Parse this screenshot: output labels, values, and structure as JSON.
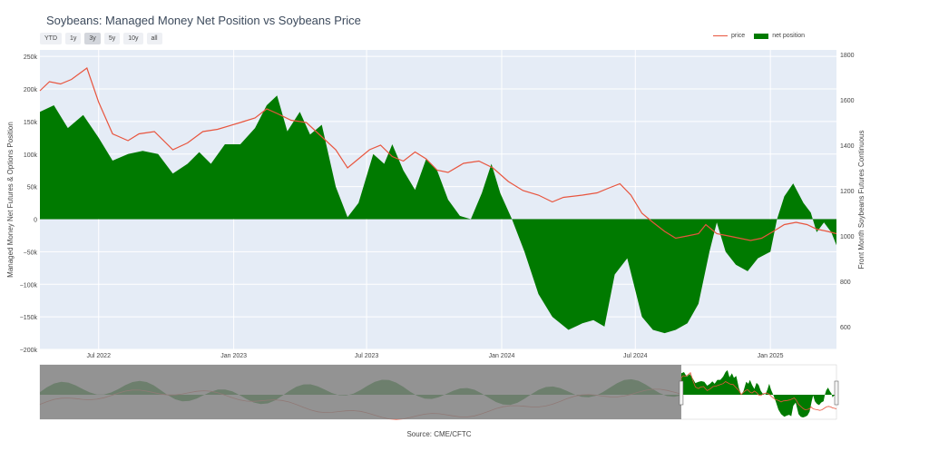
{
  "title": "Soybeans: Managed Money Net Position vs Soybeans Price",
  "range_buttons": [
    {
      "label": "YTD",
      "active": false
    },
    {
      "label": "1y",
      "active": false
    },
    {
      "label": "3y",
      "active": true
    },
    {
      "label": "5y",
      "active": false
    },
    {
      "label": "10y",
      "active": false
    },
    {
      "label": "all",
      "active": false
    }
  ],
  "legend": {
    "price": "price",
    "net": "net position"
  },
  "source": "Source: CME/CFTC",
  "colors": {
    "price": "#e8553e",
    "net": "#007a00",
    "plot_bg": "#e5ecf6",
    "grid": "#ffffff",
    "nav_mask": "#808080"
  },
  "chart_data": {
    "type": "area",
    "title": "Soybeans: Managed Money Net Position vs Soybeans Price",
    "x_range": [
      "2022-04-12",
      "2025-04-01"
    ],
    "x_ticks": [
      {
        "date": "2022-07-01",
        "label": "Jul 2022"
      },
      {
        "date": "2023-01-01",
        "label": "Jan 2023"
      },
      {
        "date": "2023-07-01",
        "label": "Jul 2023"
      },
      {
        "date": "2024-01-01",
        "label": "Jan 2024"
      },
      {
        "date": "2024-07-01",
        "label": "Jul 2024"
      },
      {
        "date": "2025-01-01",
        "label": "Jan 2025"
      }
    ],
    "y_left": {
      "label": "Managed Money Net Futures & Options Position",
      "range": [
        -200000,
        260000
      ],
      "ticks": [
        250000,
        200000,
        150000,
        100000,
        50000,
        0,
        -50000,
        -100000,
        -150000,
        -200000
      ],
      "tick_labels": [
        "250k",
        "200k",
        "150k",
        "100k",
        "50k",
        "0",
        "−50k",
        "−100k",
        "−150k",
        "−200k"
      ]
    },
    "y_right": {
      "label": "Front Month Soybeans Futures Continuous",
      "range": [
        500,
        1820
      ],
      "ticks": [
        1800,
        1600,
        1400,
        1200,
        1000,
        800,
        600
      ],
      "tick_labels": [
        "1800",
        "1600",
        "1400",
        "1200",
        "1000",
        "800",
        "600"
      ]
    },
    "grid": true,
    "legend_position": "top-right",
    "series": [
      {
        "name": "net position",
        "axis": "left",
        "points": [
          [
            "2022-04-12",
            165000
          ],
          [
            "2022-05-01",
            175000
          ],
          [
            "2022-05-20",
            140000
          ],
          [
            "2022-06-10",
            160000
          ],
          [
            "2022-07-01",
            125000
          ],
          [
            "2022-07-20",
            90000
          ],
          [
            "2022-08-10",
            100000
          ],
          [
            "2022-08-30",
            105000
          ],
          [
            "2022-09-20",
            100000
          ],
          [
            "2022-10-10",
            70000
          ],
          [
            "2022-10-30",
            85000
          ],
          [
            "2022-11-15",
            103000
          ],
          [
            "2022-12-01",
            85000
          ],
          [
            "2022-12-20",
            115000
          ],
          [
            "2023-01-10",
            115000
          ],
          [
            "2023-01-30",
            140000
          ],
          [
            "2023-02-15",
            175000
          ],
          [
            "2023-03-01",
            190000
          ],
          [
            "2023-03-15",
            135000
          ],
          [
            "2023-04-01",
            165000
          ],
          [
            "2023-04-15",
            130000
          ],
          [
            "2023-05-01",
            145000
          ],
          [
            "2023-05-20",
            50000
          ],
          [
            "2023-06-05",
            3000
          ],
          [
            "2023-06-20",
            25000
          ],
          [
            "2023-07-10",
            100000
          ],
          [
            "2023-07-25",
            85000
          ],
          [
            "2023-08-05",
            115000
          ],
          [
            "2023-08-20",
            75000
          ],
          [
            "2023-09-05",
            45000
          ],
          [
            "2023-09-20",
            92000
          ],
          [
            "2023-10-05",
            75000
          ],
          [
            "2023-10-20",
            30000
          ],
          [
            "2023-11-05",
            5000
          ],
          [
            "2023-11-20",
            0
          ],
          [
            "2023-12-05",
            40000
          ],
          [
            "2023-12-18",
            85000
          ],
          [
            "2023-12-30",
            40000
          ],
          [
            "2024-01-15",
            0
          ],
          [
            "2024-02-01",
            -50000
          ],
          [
            "2024-02-20",
            -115000
          ],
          [
            "2024-03-10",
            -150000
          ],
          [
            "2024-04-01",
            -170000
          ],
          [
            "2024-04-20",
            -160000
          ],
          [
            "2024-05-05",
            -155000
          ],
          [
            "2024-05-20",
            -165000
          ],
          [
            "2024-06-03",
            -85000
          ],
          [
            "2024-06-20",
            -60000
          ],
          [
            "2024-07-10",
            -150000
          ],
          [
            "2024-07-25",
            -170000
          ],
          [
            "2024-08-10",
            -175000
          ],
          [
            "2024-08-25",
            -170000
          ],
          [
            "2024-09-10",
            -160000
          ],
          [
            "2024-09-25",
            -130000
          ],
          [
            "2024-10-10",
            -50000
          ],
          [
            "2024-10-20",
            -5000
          ],
          [
            "2024-11-01",
            -50000
          ],
          [
            "2024-11-15",
            -70000
          ],
          [
            "2024-12-01",
            -80000
          ],
          [
            "2024-12-15",
            -60000
          ],
          [
            "2025-01-01",
            -50000
          ],
          [
            "2025-01-10",
            0
          ],
          [
            "2025-01-20",
            35000
          ],
          [
            "2025-02-01",
            55000
          ],
          [
            "2025-02-15",
            25000
          ],
          [
            "2025-02-25",
            10000
          ],
          [
            "2025-03-05",
            -20000
          ],
          [
            "2025-03-15",
            -5000
          ],
          [
            "2025-03-25",
            -20000
          ],
          [
            "2025-04-01",
            -40000
          ]
        ]
      },
      {
        "name": "price",
        "axis": "right",
        "points": [
          [
            "2022-04-12",
            1640
          ],
          [
            "2022-04-25",
            1680
          ],
          [
            "2022-05-10",
            1670
          ],
          [
            "2022-05-25",
            1690
          ],
          [
            "2022-06-15",
            1740
          ],
          [
            "2022-07-01",
            1590
          ],
          [
            "2022-07-20",
            1450
          ],
          [
            "2022-08-10",
            1420
          ],
          [
            "2022-08-25",
            1450
          ],
          [
            "2022-09-15",
            1460
          ],
          [
            "2022-10-10",
            1380
          ],
          [
            "2022-10-30",
            1410
          ],
          [
            "2022-11-20",
            1460
          ],
          [
            "2022-12-10",
            1470
          ],
          [
            "2023-01-10",
            1500
          ],
          [
            "2023-01-30",
            1520
          ],
          [
            "2023-02-15",
            1560
          ],
          [
            "2023-03-01",
            1540
          ],
          [
            "2023-03-20",
            1510
          ],
          [
            "2023-04-10",
            1500
          ],
          [
            "2023-04-30",
            1440
          ],
          [
            "2023-05-20",
            1380
          ],
          [
            "2023-06-05",
            1300
          ],
          [
            "2023-06-20",
            1340
          ],
          [
            "2023-07-05",
            1380
          ],
          [
            "2023-07-20",
            1400
          ],
          [
            "2023-08-05",
            1350
          ],
          [
            "2023-08-20",
            1330
          ],
          [
            "2023-09-05",
            1370
          ],
          [
            "2023-09-20",
            1340
          ],
          [
            "2023-10-05",
            1290
          ],
          [
            "2023-10-20",
            1280
          ],
          [
            "2023-11-10",
            1320
          ],
          [
            "2023-12-01",
            1330
          ],
          [
            "2023-12-20",
            1300
          ],
          [
            "2024-01-10",
            1240
          ],
          [
            "2024-01-30",
            1200
          ],
          [
            "2024-02-20",
            1180
          ],
          [
            "2024-03-10",
            1150
          ],
          [
            "2024-03-25",
            1170
          ],
          [
            "2024-04-20",
            1180
          ],
          [
            "2024-05-10",
            1190
          ],
          [
            "2024-05-25",
            1210
          ],
          [
            "2024-06-10",
            1230
          ],
          [
            "2024-06-25",
            1180
          ],
          [
            "2024-07-10",
            1100
          ],
          [
            "2024-07-25",
            1060
          ],
          [
            "2024-08-10",
            1020
          ],
          [
            "2024-08-25",
            990
          ],
          [
            "2024-09-10",
            1000
          ],
          [
            "2024-09-25",
            1010
          ],
          [
            "2024-10-05",
            1050
          ],
          [
            "2024-10-20",
            1010
          ],
          [
            "2024-11-05",
            1000
          ],
          [
            "2024-11-20",
            990
          ],
          [
            "2024-12-05",
            980
          ],
          [
            "2024-12-20",
            990
          ],
          [
            "2025-01-05",
            1020
          ],
          [
            "2025-01-20",
            1050
          ],
          [
            "2025-02-05",
            1060
          ],
          [
            "2025-02-20",
            1050
          ],
          [
            "2025-03-05",
            1030
          ],
          [
            "2025-03-20",
            1020
          ],
          [
            "2025-04-01",
            1010
          ]
        ]
      }
    ],
    "navigator": {
      "x_range": [
        "2010-01-01",
        "2025-04-01"
      ],
      "selection": [
        "2022-04-12",
        "2025-04-01"
      ]
    }
  }
}
